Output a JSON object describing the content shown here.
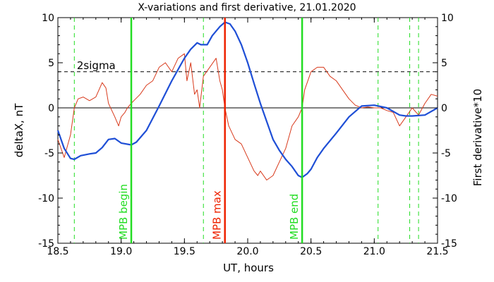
{
  "chart_data": {
    "type": "line",
    "title": "X-variations and first derivative, 21.01.2020",
    "xlabel": "UT, hours",
    "ylabel_left": "deltaX, nT",
    "ylabel_right": "First derivative*10",
    "xlim": [
      18.5,
      21.5
    ],
    "ylim": [
      -15,
      10
    ],
    "xticks": [
      "18.5",
      "19.0",
      "19.5",
      "20.0",
      "20.5",
      "21.0",
      "21.5"
    ],
    "yticks": [
      "10",
      "5",
      "0",
      "-5",
      "-10",
      "-15"
    ],
    "grid": false,
    "colors": {
      "deltaX": "#1f4fd6",
      "derivative": "#d83a1c",
      "mpb_green": "#22dd22",
      "mpb_red": "#ee2200",
      "threshold": "#000000"
    },
    "threshold": {
      "value": 4,
      "label": "2sigma"
    },
    "zero_line": 0,
    "markers": [
      {
        "x": 19.08,
        "label": "MPB begin",
        "kind": "green"
      },
      {
        "x": 19.82,
        "label": "MPB max",
        "kind": "red"
      },
      {
        "x": 20.43,
        "label": "MPB end",
        "kind": "green"
      }
    ],
    "dashed_lines": [
      18.63,
      19.65,
      21.03,
      21.28,
      21.35
    ],
    "series": [
      {
        "key": "deltaX",
        "x": [
          18.5,
          18.55,
          18.6,
          18.63,
          18.68,
          18.75,
          18.8,
          18.85,
          18.9,
          18.95,
          19.0,
          19.08,
          19.12,
          19.2,
          19.3,
          19.4,
          19.5,
          19.55,
          19.6,
          19.63,
          19.68,
          19.72,
          19.78,
          19.82,
          19.86,
          19.9,
          19.95,
          20.0,
          20.05,
          20.1,
          20.15,
          20.2,
          20.25,
          20.3,
          20.35,
          20.4,
          20.43,
          20.47,
          20.5,
          20.55,
          20.6,
          20.7,
          20.8,
          20.9,
          21.0,
          21.1,
          21.2,
          21.25,
          21.3,
          21.4,
          21.5
        ],
        "y": [
          -2.5,
          -4.5,
          -5.6,
          -5.7,
          -5.3,
          -5.1,
          -5.0,
          -4.4,
          -3.5,
          -3.4,
          -3.9,
          -4.1,
          -3.8,
          -2.5,
          0.2,
          3.0,
          5.5,
          6.5,
          7.2,
          7.0,
          7.0,
          8.0,
          9.0,
          9.5,
          9.3,
          8.5,
          7.0,
          5.0,
          2.7,
          0.5,
          -1.5,
          -3.5,
          -4.7,
          -5.7,
          -6.5,
          -7.5,
          -7.7,
          -7.3,
          -6.8,
          -5.5,
          -4.5,
          -2.8,
          -1.0,
          0.2,
          0.3,
          0.0,
          -0.8,
          -0.9,
          -0.9,
          -0.8,
          0.0
        ]
      },
      {
        "key": "derivative",
        "x": [
          18.5,
          18.55,
          18.6,
          18.63,
          18.66,
          18.7,
          18.75,
          18.8,
          18.85,
          18.88,
          18.9,
          18.95,
          18.98,
          19.0,
          19.03,
          19.05,
          19.08,
          19.1,
          19.15,
          19.2,
          19.25,
          19.3,
          19.35,
          19.4,
          19.45,
          19.5,
          19.52,
          19.55,
          19.58,
          19.6,
          19.62,
          19.65,
          19.7,
          19.75,
          19.78,
          19.8,
          19.82,
          19.85,
          19.9,
          19.95,
          20.0,
          20.05,
          20.08,
          20.1,
          20.15,
          20.2,
          20.25,
          20.3,
          20.35,
          20.4,
          20.43,
          20.45,
          20.5,
          20.55,
          20.6,
          20.65,
          20.7,
          20.75,
          20.8,
          20.85,
          20.9,
          20.95,
          21.0,
          21.05,
          21.1,
          21.15,
          21.2,
          21.25,
          21.3,
          21.35,
          21.4,
          21.45,
          21.5
        ],
        "y": [
          -3.5,
          -5.5,
          -3.0,
          0.0,
          1.0,
          1.2,
          0.8,
          1.2,
          2.8,
          2.2,
          0.5,
          -1.0,
          -2.0,
          -1.0,
          -0.5,
          0.0,
          0.5,
          0.8,
          1.5,
          2.5,
          3.0,
          4.5,
          5.0,
          4.0,
          5.5,
          6.0,
          3.0,
          5.0,
          1.5,
          2.0,
          0.0,
          3.5,
          4.5,
          5.5,
          3.0,
          2.0,
          0.0,
          -2.0,
          -3.5,
          -4.0,
          -5.5,
          -7.0,
          -7.5,
          -7.0,
          -8.0,
          -7.5,
          -6.0,
          -4.5,
          -2.0,
          -1.0,
          0.0,
          2.0,
          4.0,
          4.5,
          4.5,
          3.5,
          3.0,
          2.0,
          1.0,
          0.3,
          0.0,
          0.1,
          0.0,
          0.0,
          -0.3,
          -0.5,
          -2.0,
          -1.0,
          0.0,
          -0.8,
          0.5,
          1.5,
          1.3
        ]
      }
    ]
  }
}
